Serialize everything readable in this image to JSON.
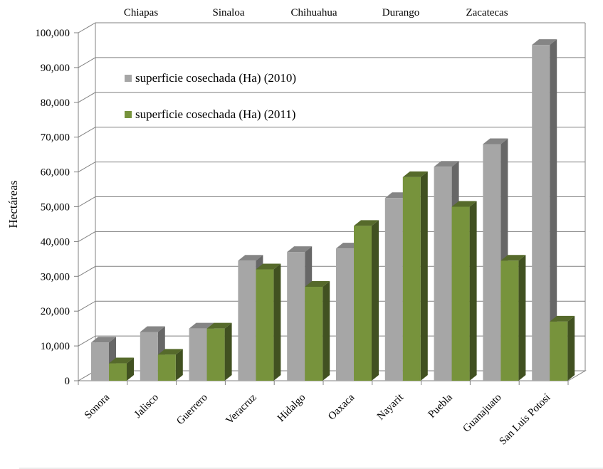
{
  "chart_data": {
    "type": "bar",
    "ylabel": "Hectáreas",
    "ylim": [
      0,
      100000
    ],
    "yticks": [
      0,
      10000,
      20000,
      30000,
      40000,
      50000,
      60000,
      70000,
      80000,
      90000,
      100000
    ],
    "ytick_labels": [
      "0",
      "10,000",
      "20,000",
      "30,000",
      "40,000",
      "50,000",
      "60,000",
      "70,000",
      "80,000",
      "90,000",
      "100,000"
    ],
    "categories": [
      "Sonora",
      "Jalisco",
      "Guerrero",
      "Veracruz",
      "Hidalgo",
      "Oaxaca",
      "Nayarit",
      "Puebla",
      "Guanajuato",
      "San Luis Potosí"
    ],
    "top_labels": [
      "Chiapas",
      "Sinaloa",
      "Chihuahua",
      "Durango",
      "Zacatecas"
    ],
    "series": [
      {
        "name": "superficie cosechada (Ha) (2010)",
        "color": "#a6a6a6",
        "values": [
          11000,
          14000,
          15000,
          34500,
          37000,
          38000,
          52500,
          61500,
          68000,
          96500
        ]
      },
      {
        "name": "superficie cosechada (Ha) (2011)",
        "color": "#77933c",
        "values": [
          5000,
          7500,
          15000,
          32000,
          27000,
          44500,
          58500,
          50000,
          34500,
          17000
        ]
      }
    ],
    "legend_position": "top-left",
    "grid": true
  }
}
